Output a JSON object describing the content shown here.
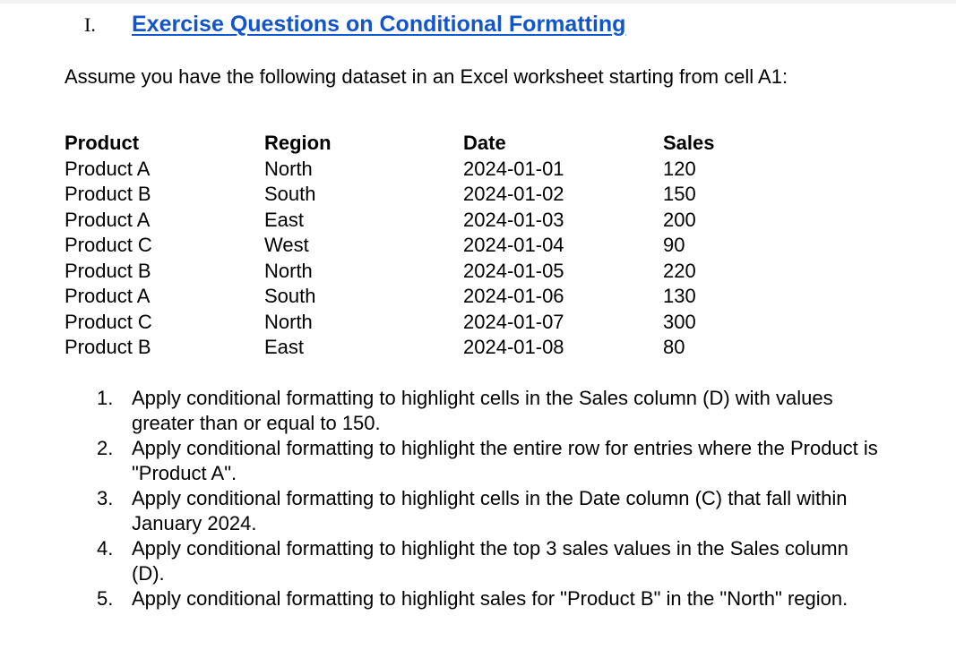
{
  "heading": {
    "number": "I.",
    "title": "Exercise Questions on Conditional Formatting"
  },
  "intro": "Assume you have the following dataset in an Excel worksheet starting from cell A1:",
  "table": {
    "headers": [
      "Product",
      "Region",
      "Date",
      "Sales"
    ],
    "rows": [
      [
        "Product A",
        "North",
        "2024-01-01",
        "120"
      ],
      [
        "Product B",
        "South",
        "2024-01-02",
        "150"
      ],
      [
        "Product A",
        "East",
        "2024-01-03",
        "200"
      ],
      [
        "Product C",
        "West",
        "2024-01-04",
        "90"
      ],
      [
        "Product B",
        "North",
        "2024-01-05",
        "220"
      ],
      [
        "Product A",
        "South",
        "2024-01-06",
        "130"
      ],
      [
        "Product C",
        "North",
        "2024-01-07",
        "300"
      ],
      [
        "Product B",
        "East",
        "2024-01-08",
        "80"
      ]
    ]
  },
  "questions": [
    {
      "number": "1.",
      "text": "Apply conditional formatting to highlight cells in the Sales column (D) with values greater than or equal to 150."
    },
    {
      "number": "2.",
      "text": "Apply conditional formatting to highlight the entire row for entries where the Product is \"Product A\"."
    },
    {
      "number": "3.",
      "text": "Apply conditional formatting to highlight cells in the Date column (C) that fall within January 2024."
    },
    {
      "number": "4.",
      "text": "Apply conditional formatting to highlight the top 3 sales values in the Sales column (D)."
    },
    {
      "number": "5.",
      "text": "Apply conditional formatting to highlight sales for \"Product B\" in the \"North\" region."
    }
  ],
  "colors": {
    "heading_link": "#1155cc",
    "text": "#000000",
    "background": "#ffffff"
  }
}
